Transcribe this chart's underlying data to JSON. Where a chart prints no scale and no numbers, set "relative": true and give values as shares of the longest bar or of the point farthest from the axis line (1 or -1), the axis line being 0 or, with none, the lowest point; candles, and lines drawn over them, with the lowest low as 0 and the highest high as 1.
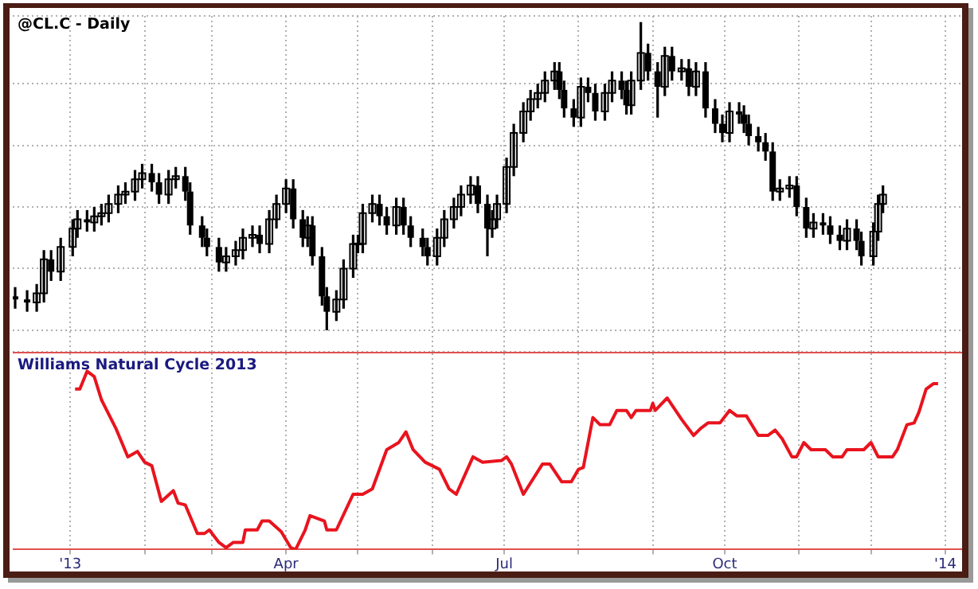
{
  "chart_data": [
    {
      "type": "candlestick",
      "title": "@CL.C - Daily",
      "relative": true,
      "color": "#000000",
      "grid": true,
      "tick_labels": false,
      "xlim": [
        "2012-12-08",
        "2014-01-08"
      ],
      "xticks": [
        {
          "value": "2013-01-01",
          "label": null
        },
        {
          "value": "2013-02-01",
          "label": null
        },
        {
          "value": "2013-03-01",
          "label": null
        },
        {
          "value": "2013-04-01",
          "label": null
        },
        {
          "value": "2013-05-01",
          "label": null
        },
        {
          "value": "2013-06-01",
          "label": null
        },
        {
          "value": "2013-07-01",
          "label": null
        },
        {
          "value": "2013-08-01",
          "label": null
        },
        {
          "value": "2013-09-01",
          "label": null
        },
        {
          "value": "2013-10-01",
          "label": null
        },
        {
          "value": "2013-11-01",
          "label": null
        },
        {
          "value": "2013-12-01",
          "label": null
        },
        {
          "value": "2014-01-01",
          "label": null
        }
      ],
      "x": [
        "2012-12-09",
        "2012-12-14",
        "2012-12-18",
        "2012-12-21",
        "2012-12-24",
        "2012-12-28",
        "2013-01-02",
        "2013-01-04",
        "2013-01-08",
        "2013-01-11",
        "2013-01-14",
        "2013-01-17",
        "2013-01-21",
        "2013-01-24",
        "2013-01-28",
        "2013-01-31",
        "2013-02-04",
        "2013-02-07",
        "2013-02-11",
        "2013-02-14",
        "2013-02-18",
        "2013-02-20",
        "2013-02-25",
        "2013-02-27",
        "2013-03-04",
        "2013-03-07",
        "2013-03-11",
        "2013-03-14",
        "2013-03-18",
        "2013-03-21",
        "2013-03-25",
        "2013-03-28",
        "2013-04-01",
        "2013-04-04",
        "2013-04-08",
        "2013-04-10",
        "2013-04-12",
        "2013-04-16",
        "2013-04-18",
        "2013-04-22",
        "2013-04-25",
        "2013-04-29",
        "2013-05-01",
        "2013-05-03",
        "2013-05-07",
        "2013-05-10",
        "2013-05-13",
        "2013-05-17",
        "2013-05-20",
        "2013-05-23",
        "2013-05-28",
        "2013-05-30",
        "2013-06-03",
        "2013-06-06",
        "2013-06-10",
        "2013-06-13",
        "2013-06-17",
        "2013-06-20",
        "2013-06-24",
        "2013-06-26",
        "2013-06-28",
        "2013-07-02",
        "2013-07-05",
        "2013-07-09",
        "2013-07-12",
        "2013-07-15",
        "2013-07-18",
        "2013-07-22",
        "2013-07-24",
        "2013-07-26",
        "2013-07-30",
        "2013-08-02",
        "2013-08-05",
        "2013-08-08",
        "2013-08-12",
        "2013-08-15",
        "2013-08-19",
        "2013-08-21",
        "2013-08-23",
        "2013-08-27",
        "2013-08-30",
        "2013-09-03",
        "2013-09-06",
        "2013-09-09",
        "2013-09-13",
        "2013-09-16",
        "2013-09-19",
        "2013-09-23",
        "2013-09-27",
        "2013-09-30",
        "2013-10-03",
        "2013-10-07",
        "2013-10-09",
        "2013-10-11",
        "2013-10-15",
        "2013-10-18",
        "2013-10-21",
        "2013-10-24",
        "2013-10-28",
        "2013-10-31",
        "2013-11-04",
        "2013-11-07",
        "2013-11-11",
        "2013-11-14",
        "2013-11-18",
        "2013-11-21",
        "2013-11-25",
        "2013-11-27",
        "2013-12-02",
        "2013-12-04",
        "2013-12-06"
      ],
      "ohlc": [
        [
          0.11,
          0.14,
          0.07,
          0.1
        ],
        [
          0.1,
          0.13,
          0.06,
          0.09
        ],
        [
          0.09,
          0.15,
          0.06,
          0.12
        ],
        [
          0.12,
          0.26,
          0.09,
          0.23
        ],
        [
          0.23,
          0.26,
          0.16,
          0.19
        ],
        [
          0.19,
          0.3,
          0.16,
          0.27
        ],
        [
          0.27,
          0.36,
          0.24,
          0.33
        ],
        [
          0.33,
          0.39,
          0.3,
          0.36
        ],
        [
          0.36,
          0.39,
          0.32,
          0.35
        ],
        [
          0.35,
          0.4,
          0.32,
          0.37
        ],
        [
          0.37,
          0.41,
          0.34,
          0.38
        ],
        [
          0.38,
          0.44,
          0.35,
          0.41
        ],
        [
          0.41,
          0.47,
          0.38,
          0.44
        ],
        [
          0.44,
          0.48,
          0.41,
          0.45
        ],
        [
          0.45,
          0.52,
          0.42,
          0.49
        ],
        [
          0.49,
          0.54,
          0.46,
          0.51
        ],
        [
          0.51,
          0.54,
          0.45,
          0.48
        ],
        [
          0.48,
          0.51,
          0.41,
          0.44
        ],
        [
          0.44,
          0.52,
          0.41,
          0.49
        ],
        [
          0.49,
          0.53,
          0.46,
          0.5
        ],
        [
          0.5,
          0.53,
          0.42,
          0.45
        ],
        [
          0.45,
          0.48,
          0.31,
          0.34
        ],
        [
          0.34,
          0.37,
          0.27,
          0.3
        ],
        [
          0.3,
          0.33,
          0.24,
          0.27
        ],
        [
          0.27,
          0.3,
          0.19,
          0.22
        ],
        [
          0.22,
          0.27,
          0.19,
          0.24
        ],
        [
          0.24,
          0.29,
          0.21,
          0.26
        ],
        [
          0.26,
          0.33,
          0.23,
          0.3
        ],
        [
          0.3,
          0.34,
          0.27,
          0.31
        ],
        [
          0.31,
          0.34,
          0.25,
          0.28
        ],
        [
          0.28,
          0.39,
          0.25,
          0.36
        ],
        [
          0.36,
          0.44,
          0.33,
          0.41
        ],
        [
          0.41,
          0.49,
          0.38,
          0.46
        ],
        [
          0.46,
          0.49,
          0.33,
          0.36
        ],
        [
          0.36,
          0.39,
          0.27,
          0.3
        ],
        [
          0.3,
          0.37,
          0.27,
          0.34
        ],
        [
          0.34,
          0.37,
          0.21,
          0.24
        ],
        [
          0.24,
          0.27,
          0.08,
          0.11
        ],
        [
          0.11,
          0.14,
          0,
          0.06
        ],
        [
          0.06,
          0.13,
          0.03,
          0.1
        ],
        [
          0.1,
          0.23,
          0.07,
          0.2
        ],
        [
          0.2,
          0.31,
          0.17,
          0.28
        ],
        [
          0.28,
          0.31,
          0.25,
          0.28
        ],
        [
          0.28,
          0.41,
          0.25,
          0.38
        ],
        [
          0.38,
          0.44,
          0.35,
          0.41
        ],
        [
          0.41,
          0.44,
          0.34,
          0.37
        ],
        [
          0.37,
          0.4,
          0.31,
          0.34
        ],
        [
          0.34,
          0.43,
          0.31,
          0.4
        ],
        [
          0.4,
          0.43,
          0.31,
          0.34
        ],
        [
          0.34,
          0.37,
          0.27,
          0.3
        ],
        [
          0.3,
          0.33,
          0.24,
          0.27
        ],
        [
          0.27,
          0.3,
          0.21,
          0.24
        ],
        [
          0.24,
          0.33,
          0.21,
          0.3
        ],
        [
          0.3,
          0.39,
          0.27,
          0.36
        ],
        [
          0.36,
          0.43,
          0.33,
          0.4
        ],
        [
          0.4,
          0.47,
          0.37,
          0.44
        ],
        [
          0.44,
          0.5,
          0.41,
          0.47
        ],
        [
          0.47,
          0.5,
          0.38,
          0.41
        ],
        [
          0.41,
          0.44,
          0.24,
          0.33
        ],
        [
          0.33,
          0.39,
          0.3,
          0.36
        ],
        [
          0.36,
          0.44,
          0.33,
          0.41
        ],
        [
          0.41,
          0.56,
          0.38,
          0.53
        ],
        [
          0.53,
          0.67,
          0.5,
          0.64
        ],
        [
          0.64,
          0.74,
          0.61,
          0.71
        ],
        [
          0.71,
          0.78,
          0.68,
          0.75
        ],
        [
          0.75,
          0.8,
          0.72,
          0.77
        ],
        [
          0.77,
          0.84,
          0.74,
          0.81
        ],
        [
          0.81,
          0.87,
          0.78,
          0.84
        ],
        [
          0.84,
          0.87,
          0.75,
          0.78
        ],
        [
          0.78,
          0.81,
          0.69,
          0.72
        ],
        [
          0.72,
          0.75,
          0.66,
          0.69
        ],
        [
          0.69,
          0.82,
          0.66,
          0.79
        ],
        [
          0.79,
          0.82,
          0.74,
          0.77
        ],
        [
          0.77,
          0.8,
          0.68,
          0.71
        ],
        [
          0.71,
          0.8,
          0.68,
          0.77
        ],
        [
          0.77,
          0.84,
          0.74,
          0.81
        ],
        [
          0.81,
          0.84,
          0.75,
          0.78
        ],
        [
          0.78,
          0.81,
          0.7,
          0.73
        ],
        [
          0.73,
          0.84,
          0.7,
          0.81
        ],
        [
          0.81,
          1,
          0.78,
          0.9
        ],
        [
          0.9,
          0.93,
          0.81,
          0.84
        ],
        [
          0.84,
          0.87,
          0.69,
          0.79
        ],
        [
          0.79,
          0.92,
          0.76,
          0.89
        ],
        [
          0.89,
          0.92,
          0.81,
          0.84
        ],
        [
          0.84,
          0.88,
          0.81,
          0.85
        ],
        [
          0.85,
          0.88,
          0.76,
          0.79
        ],
        [
          0.79,
          0.87,
          0.76,
          0.84
        ],
        [
          0.84,
          0.87,
          0.69,
          0.72
        ],
        [
          0.72,
          0.75,
          0.64,
          0.67
        ],
        [
          0.67,
          0.7,
          0.61,
          0.64
        ],
        [
          0.64,
          0.74,
          0.61,
          0.71
        ],
        [
          0.71,
          0.74,
          0.67,
          0.7
        ],
        [
          0.7,
          0.73,
          0.64,
          0.67
        ],
        [
          0.67,
          0.7,
          0.6,
          0.63
        ],
        [
          0.63,
          0.66,
          0.58,
          0.61
        ],
        [
          0.61,
          0.64,
          0.55,
          0.58
        ],
        [
          0.58,
          0.61,
          0.42,
          0.45
        ],
        [
          0.45,
          0.49,
          0.42,
          0.46
        ],
        [
          0.46,
          0.5,
          0.43,
          0.47
        ],
        [
          0.47,
          0.5,
          0.37,
          0.4
        ],
        [
          0.4,
          0.43,
          0.3,
          0.33
        ],
        [
          0.33,
          0.38,
          0.3,
          0.35
        ],
        [
          0.35,
          0.38,
          0.31,
          0.34
        ],
        [
          0.34,
          0.37,
          0.28,
          0.31
        ],
        [
          0.31,
          0.34,
          0.26,
          0.29
        ],
        [
          0.29,
          0.36,
          0.26,
          0.33
        ],
        [
          0.33,
          0.36,
          0.26,
          0.29
        ],
        [
          0.29,
          0.32,
          0.21,
          0.24
        ],
        [
          0.24,
          0.35,
          0.21,
          0.32
        ],
        [
          0.32,
          0.44,
          0.29,
          0.41
        ],
        [
          0.41,
          0.47,
          0.38,
          0.44
        ]
      ]
    },
    {
      "type": "line",
      "title": "Williams Natural Cycle 2013",
      "relative": true,
      "color": "#e8141e",
      "grid": "x",
      "tick_labels": "x",
      "xlim": [
        "2012-12-08",
        "2014-01-08"
      ],
      "xticks": [
        {
          "value": "2013-01-01",
          "label": "'13"
        },
        {
          "value": "2013-02-01",
          "label": null
        },
        {
          "value": "2013-03-01",
          "label": null
        },
        {
          "value": "2013-04-01",
          "label": "Apr"
        },
        {
          "value": "2013-05-01",
          "label": null
        },
        {
          "value": "2013-06-01",
          "label": null
        },
        {
          "value": "2013-07-01",
          "label": "Jul"
        },
        {
          "value": "2013-08-01",
          "label": null
        },
        {
          "value": "2013-09-01",
          "label": null
        },
        {
          "value": "2013-10-01",
          "label": "Oct"
        },
        {
          "value": "2013-11-01",
          "label": null
        },
        {
          "value": "2013-12-01",
          "label": null
        },
        {
          "value": "2014-01-01",
          "label": "'14"
        }
      ],
      "x": [
        "2013-01-03",
        "2013-01-05",
        "2013-01-08",
        "2013-01-11",
        "2013-01-14",
        "2013-01-20",
        "2013-01-25",
        "2013-01-29",
        "2013-02-01",
        "2013-02-04",
        "2013-02-08",
        "2013-02-13",
        "2013-02-15",
        "2013-02-18",
        "2013-02-23",
        "2013-02-26",
        "2013-02-28",
        "2013-03-04",
        "2013-03-07",
        "2013-03-10",
        "2013-03-14",
        "2013-03-15",
        "2013-03-20",
        "2013-03-22",
        "2013-03-25",
        "2013-03-30",
        "2013-04-03",
        "2013-04-05",
        "2013-04-09",
        "2013-04-11",
        "2013-04-13",
        "2013-04-17",
        "2013-04-18",
        "2013-04-22",
        "2013-04-29",
        "2013-05-03",
        "2013-05-07",
        "2013-05-13",
        "2013-05-18",
        "2013-05-21",
        "2013-05-24",
        "2013-05-29",
        "2013-06-04",
        "2013-06-08",
        "2013-06-11",
        "2013-06-18",
        "2013-06-22",
        "2013-06-30",
        "2013-07-02",
        "2013-07-04",
        "2013-07-09",
        "2013-07-17",
        "2013-07-20",
        "2013-07-25",
        "2013-07-29",
        "2013-08-01",
        "2013-08-03",
        "2013-08-07",
        "2013-08-10",
        "2013-08-14",
        "2013-08-17",
        "2013-08-21",
        "2013-08-23",
        "2013-08-25",
        "2013-08-31",
        "2013-09-01",
        "2013-09-02",
        "2013-09-07",
        "2013-09-13",
        "2013-09-18",
        "2013-09-21",
        "2013-09-24",
        "2013-09-29",
        "2013-10-03",
        "2013-10-06",
        "2013-10-10",
        "2013-10-15",
        "2013-10-19",
        "2013-10-22",
        "2013-10-25",
        "2013-10-29",
        "2013-10-31",
        "2013-11-03",
        "2013-11-06",
        "2013-11-12",
        "2013-11-15",
        "2013-11-19",
        "2013-11-21",
        "2013-11-28",
        "2013-12-01",
        "2013-12-04",
        "2013-12-10",
        "2013-12-12",
        "2013-12-16",
        "2013-12-19",
        "2013-12-21",
        "2013-12-24",
        "2013-12-27",
        "2013-12-29"
      ],
      "values": [
        0.9,
        0.9,
        1,
        0.97,
        0.84,
        0.68,
        0.52,
        0.55,
        0.49,
        0.47,
        0.27,
        0.33,
        0.26,
        0.25,
        0.09,
        0.09,
        0.11,
        0.04,
        0.01,
        0.04,
        0.04,
        0.11,
        0.11,
        0.16,
        0.16,
        0.1,
        0.01,
        0,
        0.11,
        0.19,
        0.18,
        0.16,
        0.11,
        0.11,
        0.31,
        0.31,
        0.34,
        0.56,
        0.6,
        0.66,
        0.56,
        0.49,
        0.45,
        0.34,
        0.31,
        0.52,
        0.49,
        0.5,
        0.52,
        0.48,
        0.31,
        0.48,
        0.48,
        0.38,
        0.38,
        0.45,
        0.46,
        0.74,
        0.7,
        0.7,
        0.78,
        0.78,
        0.74,
        0.78,
        0.78,
        0.82,
        0.78,
        0.85,
        0.73,
        0.64,
        0.68,
        0.71,
        0.71,
        0.78,
        0.75,
        0.75,
        0.64,
        0.64,
        0.67,
        0.62,
        0.52,
        0.52,
        0.6,
        0.56,
        0.56,
        0.52,
        0.52,
        0.56,
        0.56,
        0.6,
        0.52,
        0.52,
        0.56,
        0.7,
        0.71,
        0.77,
        0.9,
        0.93,
        0.93
      ]
    }
  ]
}
